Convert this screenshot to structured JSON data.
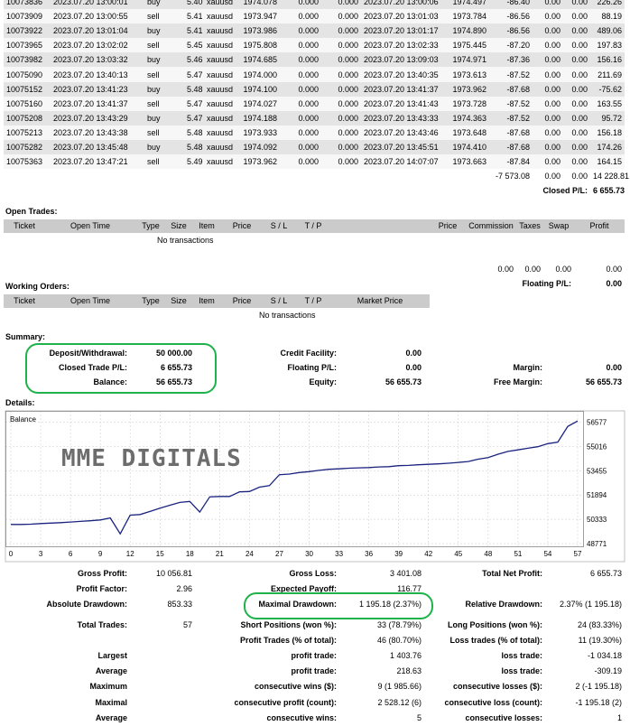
{
  "deals": [
    [
      "10073836",
      "2023.07.20 13:00:01",
      "buy",
      "5.40",
      "xauusd",
      "1974.078",
      "0.000",
      "0.000",
      "2023.07.20 13:00:06",
      "1974.497",
      "-86.40",
      "0.00",
      "0.00",
      "226.26"
    ],
    [
      "10073909",
      "2023.07.20 13:00:55",
      "sell",
      "5.41",
      "xauusd",
      "1973.947",
      "0.000",
      "0.000",
      "2023.07.20 13:01:03",
      "1973.784",
      "-86.56",
      "0.00",
      "0.00",
      "88.19"
    ],
    [
      "10073922",
      "2023.07.20 13:01:04",
      "buy",
      "5.41",
      "xauusd",
      "1973.986",
      "0.000",
      "0.000",
      "2023.07.20 13:01:17",
      "1974.890",
      "-86.56",
      "0.00",
      "0.00",
      "489.06"
    ],
    [
      "10073965",
      "2023.07.20 13:02:02",
      "sell",
      "5.45",
      "xauusd",
      "1975.808",
      "0.000",
      "0.000",
      "2023.07.20 13:02:33",
      "1975.445",
      "-87.20",
      "0.00",
      "0.00",
      "197.83"
    ],
    [
      "10073982",
      "2023.07.20 13:03:32",
      "buy",
      "5.46",
      "xauusd",
      "1974.685",
      "0.000",
      "0.000",
      "2023.07.20 13:09:03",
      "1974.971",
      "-87.36",
      "0.00",
      "0.00",
      "156.16"
    ],
    [
      "10075090",
      "2023.07.20 13:40:13",
      "sell",
      "5.47",
      "xauusd",
      "1974.000",
      "0.000",
      "0.000",
      "2023.07.20 13:40:35",
      "1973.613",
      "-87.52",
      "0.00",
      "0.00",
      "211.69"
    ],
    [
      "10075152",
      "2023.07.20 13:41:23",
      "buy",
      "5.48",
      "xauusd",
      "1974.100",
      "0.000",
      "0.000",
      "2023.07.20 13:41:37",
      "1973.962",
      "-87.68",
      "0.00",
      "0.00",
      "-75.62"
    ],
    [
      "10075160",
      "2023.07.20 13:41:37",
      "sell",
      "5.47",
      "xauusd",
      "1974.027",
      "0.000",
      "0.000",
      "2023.07.20 13:41:43",
      "1973.728",
      "-87.52",
      "0.00",
      "0.00",
      "163.55"
    ],
    [
      "10075208",
      "2023.07.20 13:43:29",
      "buy",
      "5.47",
      "xauusd",
      "1974.188",
      "0.000",
      "0.000",
      "2023.07.20 13:43:33",
      "1974.363",
      "-87.52",
      "0.00",
      "0.00",
      "95.72"
    ],
    [
      "10075213",
      "2023.07.20 13:43:38",
      "sell",
      "5.48",
      "xauusd",
      "1973.933",
      "0.000",
      "0.000",
      "2023.07.20 13:43:46",
      "1973.648",
      "-87.68",
      "0.00",
      "0.00",
      "156.18"
    ],
    [
      "10075282",
      "2023.07.20 13:45:48",
      "buy",
      "5.48",
      "xauusd",
      "1974.092",
      "0.000",
      "0.000",
      "2023.07.20 13:45:51",
      "1974.410",
      "-87.68",
      "0.00",
      "0.00",
      "174.26"
    ],
    [
      "10075363",
      "2023.07.20 13:47:21",
      "sell",
      "5.49",
      "xauusd",
      "1973.962",
      "0.000",
      "0.000",
      "2023.07.20 14:07:07",
      "1973.663",
      "-87.84",
      "0.00",
      "0.00",
      "164.15"
    ]
  ],
  "closed": {
    "total_commission": "-7 573.08",
    "total_taxes": "0.00",
    "total_swap": "0.00",
    "total_profit": "14 228.81",
    "pl_label": "Closed P/L:",
    "pl_value": "6 655.73"
  },
  "open_trades": {
    "title": "Open Trades:",
    "headers": [
      "Ticket",
      "Open Time",
      "Type",
      "Size",
      "Item",
      "Price",
      "S / L",
      "T / P",
      "",
      "Price",
      "Commission",
      "Taxes",
      "Swap",
      "Profit"
    ],
    "empty": "No transactions",
    "commission": "0.00",
    "taxes": "0.00",
    "swap": "0.00",
    "profit": "0.00",
    "pl_label": "Floating P/L:",
    "pl_value": "0.00"
  },
  "working_orders": {
    "title": "Working Orders:",
    "headers": [
      "Ticket",
      "Open Time",
      "Type",
      "Size",
      "Item",
      "Price",
      "S / L",
      "T / P",
      "Market Price"
    ],
    "empty": "No transactions"
  },
  "summary": {
    "title": "Summary:",
    "deposit_label": "Deposit/Withdrawal:",
    "deposit_value": "50 000.00",
    "closed_label": "Closed Trade P/L:",
    "closed_value": "6 655.73",
    "balance_label": "Balance:",
    "balance_value": "56 655.73",
    "credit_label": "Credit Facility:",
    "credit_value": "0.00",
    "floating_label": "Floating P/L:",
    "floating_value": "0.00",
    "equity_label": "Equity:",
    "equity_value": "56 655.73",
    "margin_label": "Margin:",
    "margin_value": "0.00",
    "free_margin_label": "Free Margin:",
    "free_margin_value": "56 655.73"
  },
  "details": {
    "title": "Details:"
  },
  "chart_data": {
    "type": "line",
    "legend": "Balance",
    "watermark": "MME DIGITALS",
    "x": [
      0,
      1,
      2,
      3,
      4,
      5,
      6,
      7,
      8,
      9,
      10,
      11,
      12,
      13,
      14,
      15,
      16,
      17,
      18,
      19,
      20,
      21,
      22,
      23,
      24,
      25,
      26,
      27,
      28,
      29,
      30,
      31,
      32,
      33,
      34,
      35,
      36,
      37,
      38,
      39,
      40,
      41,
      42,
      43,
      44,
      45,
      46,
      47,
      48,
      49,
      50,
      51,
      52,
      53,
      54,
      55,
      56,
      57
    ],
    "y": [
      50000,
      50000,
      50020,
      50060,
      50090,
      50120,
      50160,
      50200,
      50240,
      50290,
      50420,
      49400,
      50600,
      50640,
      50840,
      51050,
      51240,
      51420,
      51480,
      50800,
      51780,
      51800,
      51800,
      52100,
      52120,
      52400,
      52500,
      53200,
      53240,
      53340,
      53400,
      53480,
      53550,
      53580,
      53620,
      53640,
      53660,
      53700,
      53720,
      53780,
      53800,
      53840,
      53870,
      53900,
      53940,
      53990,
      54050,
      54200,
      54300,
      54520,
      54700,
      54800,
      54900,
      55000,
      55200,
      55300,
      56300,
      56655.73
    ],
    "xticks": [
      "0",
      "3",
      "6",
      "9",
      "12",
      "15",
      "18",
      "21",
      "24",
      "27",
      "30",
      "33",
      "36",
      "39",
      "42",
      "45",
      "48",
      "51",
      "54",
      "57"
    ],
    "xtick_values": [
      0,
      3,
      6,
      9,
      12,
      15,
      18,
      21,
      24,
      27,
      30,
      33,
      36,
      39,
      42,
      45,
      48,
      51,
      54,
      57
    ],
    "yticks": [
      "56577",
      "55016",
      "53455",
      "51894",
      "50333",
      "48771"
    ],
    "ytick_values": [
      56577,
      55016,
      53455,
      51894,
      50333,
      48771
    ],
    "ylim": [
      48771,
      56900
    ],
    "xlim": [
      0,
      57
    ],
    "colors": {
      "line": "#1a237e",
      "grid": "#c8c8c8"
    }
  },
  "stats": {
    "gross_profit_label": "Gross Profit:",
    "gross_profit": "10 056.81",
    "gross_loss_label": "Gross Loss:",
    "gross_loss": "3 401.08",
    "net_profit_label": "Total Net Profit:",
    "net_profit": "6 655.73",
    "profit_factor_label": "Profit Factor:",
    "profit_factor": "2.96",
    "expected_payoff_label": "Expected Payoff:",
    "expected_payoff": "116.77",
    "abs_dd_label": "Absolute Drawdown:",
    "abs_dd": "853.33",
    "max_dd_label": "Maximal Drawdown:",
    "max_dd": "1 195.18 (2.37%)",
    "rel_dd_label": "Relative Drawdown:",
    "rel_dd": "2.37% (1 195.18)",
    "total_trades_label": "Total Trades:",
    "total_trades": "57",
    "short_label": "Short Positions (won %):",
    "short": "33 (78.79%)",
    "long_label": "Long Positions (won %):",
    "long": "24 (83.33%)",
    "profit_trades_label": "Profit Trades (% of total):",
    "profit_trades": "46 (80.70%)",
    "loss_trades_label": "Loss trades (% of total):",
    "loss_trades": "11 (19.30%)",
    "largest_label": "Largest",
    "largest_profit_label": "profit trade:",
    "largest_profit": "1 403.76",
    "largest_loss_label": "loss trade:",
    "largest_loss": "-1 034.18",
    "average_label": "Average",
    "average_profit_label": "profit trade:",
    "average_profit": "218.63",
    "average_loss_label": "loss trade:",
    "average_loss": "-309.19",
    "maximum_label": "Maximum",
    "max_wins_label": "consecutive wins ($):",
    "max_wins": "9 (1 985.66)",
    "max_losses_label": "consecutive losses ($):",
    "max_losses": "2 (-1 195.18)",
    "maximal_label": "Maximal",
    "maximal_profit_label": "consecutive profit (count):",
    "maximal_profit": "2 528.12 (6)",
    "maximal_loss_label": "consecutive loss (count):",
    "maximal_loss": "-1 195.18 (2)",
    "avg2_label": "Average",
    "avg_wins_label": "consecutive wins:",
    "avg_wins": "5",
    "avg_losses_label": "consecutive losses:",
    "avg_losses": "1"
  }
}
